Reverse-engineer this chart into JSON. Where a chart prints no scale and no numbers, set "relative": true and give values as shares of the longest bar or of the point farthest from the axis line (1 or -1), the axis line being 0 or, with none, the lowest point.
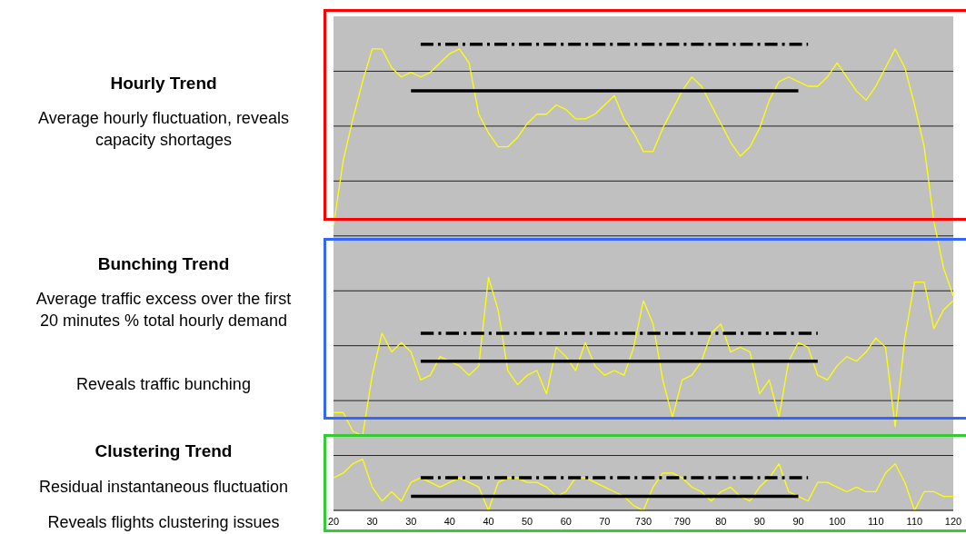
{
  "chart_data": {
    "type": "line",
    "relative": true,
    "grid": true,
    "marker": "none",
    "annotations": [
      "Hourly Trend",
      "Average hourly fluctuation, reveals capacity shortages",
      "Bunching Trend",
      "Average traffic excess over the first 20 minutes % total hourly demand",
      "Reveals traffic bunching",
      "Clustering Trend",
      "Residual instantaneous fluctuation",
      "Reveals flights clustering issues"
    ],
    "categories": [
      "20",
      null,
      null,
      null,
      "30",
      null,
      null,
      null,
      "30",
      null,
      null,
      null,
      "40",
      null,
      null,
      null,
      "40",
      null,
      null,
      null,
      "50",
      null,
      null,
      null,
      "60",
      null,
      null,
      null,
      "70",
      null,
      null,
      null,
      "730",
      null,
      null,
      null,
      "790",
      null,
      null,
      null,
      "80",
      null,
      null,
      null,
      "90",
      null,
      null,
      null,
      "90",
      null,
      null,
      null,
      "100",
      null,
      null,
      null,
      "110",
      null,
      null,
      null,
      "110",
      null,
      null,
      null,
      "120"
    ],
    "series": [
      {
        "color": "#ffff00",
        "values": [
          0.61,
          0.75,
          0.84,
          0.92,
          0.99,
          0.99,
          0.95,
          0.93,
          0.94,
          0.93,
          0.94,
          0.96,
          0.98,
          0.99,
          0.96,
          0.85,
          0.81,
          0.78,
          0.78,
          0.8,
          0.83,
          0.85,
          0.85,
          0.87,
          0.86,
          0.84,
          0.84,
          0.85,
          0.87,
          0.89,
          0.84,
          0.81,
          0.77,
          0.77,
          0.82,
          0.86,
          0.9,
          0.93,
          0.91,
          0.87,
          0.83,
          0.79,
          0.76,
          0.78,
          0.82,
          0.88,
          0.92,
          0.93,
          0.92,
          0.91,
          0.91,
          0.93,
          0.96,
          0.93,
          0.9,
          0.88,
          0.91,
          0.95,
          0.99,
          0.95,
          0.87,
          0.78,
          0.62,
          0.52,
          0.46
        ]
      },
      {
        "color": "#ffff00",
        "values": [
          0.21,
          0.21,
          0.17,
          0.16,
          0.29,
          0.38,
          0.34,
          0.36,
          0.34,
          0.28,
          0.29,
          0.33,
          0.32,
          0.31,
          0.29,
          0.31,
          0.5,
          0.43,
          0.3,
          0.27,
          0.29,
          0.3,
          0.25,
          0.35,
          0.33,
          0.3,
          0.36,
          0.31,
          0.29,
          0.3,
          0.29,
          0.35,
          0.45,
          0.4,
          0.28,
          0.2,
          0.28,
          0.29,
          0.32,
          0.38,
          0.4,
          0.34,
          0.35,
          0.34,
          0.25,
          0.28,
          0.2,
          0.32,
          0.36,
          0.35,
          0.29,
          0.28,
          0.31,
          0.33,
          0.32,
          0.34,
          0.37,
          0.35,
          0.18,
          0.37,
          0.49,
          0.49,
          0.39,
          0.43,
          0.45
        ]
      },
      {
        "color": "#ffff00",
        "values": [
          0.07,
          0.08,
          0.1,
          0.11,
          0.05,
          0.02,
          0.04,
          0.02,
          0.06,
          0.07,
          0.06,
          0.05,
          0.06,
          0.07,
          0.06,
          0.05,
          0,
          0.06,
          0.07,
          0.07,
          0.06,
          0.06,
          0.05,
          0.03,
          0.04,
          0.07,
          0.07,
          0.06,
          0.05,
          0.04,
          0.03,
          0.01,
          0,
          0.05,
          0.08,
          0.08,
          0.07,
          0.05,
          0.04,
          0.02,
          0.04,
          0.05,
          0.03,
          0.02,
          0.05,
          0.07,
          0.1,
          0.04,
          0.03,
          0.02,
          0.06,
          0.06,
          0.05,
          0.04,
          0.05,
          0.04,
          0.04,
          0.08,
          0.1,
          0.06,
          0,
          0.04,
          0.04,
          0.03,
          0.03
        ]
      },
      {
        "color": "#000000",
        "line_style": "dashed",
        "values": [
          null,
          null,
          null,
          null,
          null,
          null,
          null,
          null,
          null,
          1,
          1,
          1,
          1,
          1,
          1,
          1,
          1,
          1,
          1,
          1,
          1,
          1,
          1,
          1,
          1,
          1,
          1,
          1,
          1,
          1,
          1,
          1,
          1,
          1,
          1,
          1,
          1,
          1,
          1,
          1,
          1,
          1,
          1,
          1,
          1,
          1,
          1,
          1,
          1,
          1,
          null,
          null,
          null,
          null,
          null,
          null,
          null,
          null,
          null,
          null,
          null,
          null,
          null,
          null,
          null
        ]
      },
      {
        "color": "#000000",
        "line_style": "solid",
        "values": [
          null,
          null,
          null,
          null,
          null,
          null,
          null,
          null,
          0.9,
          0.9,
          0.9,
          0.9,
          0.9,
          0.9,
          0.9,
          0.9,
          0.9,
          0.9,
          0.9,
          0.9,
          0.9,
          0.9,
          0.9,
          0.9,
          0.9,
          0.9,
          0.9,
          0.9,
          0.9,
          0.9,
          0.9,
          0.9,
          0.9,
          0.9,
          0.9,
          0.9,
          0.9,
          0.9,
          0.9,
          0.9,
          0.9,
          0.9,
          0.9,
          0.9,
          0.9,
          0.9,
          0.9,
          0.9,
          0.9,
          null,
          null,
          null,
          null,
          null,
          null,
          null,
          null,
          null,
          null,
          null,
          null,
          null,
          null,
          null,
          null
        ]
      },
      {
        "color": "#000000",
        "line_style": "dashed",
        "values": [
          null,
          null,
          null,
          null,
          null,
          null,
          null,
          null,
          null,
          0.38,
          0.38,
          0.38,
          0.38,
          0.38,
          0.38,
          0.38,
          0.38,
          0.38,
          0.38,
          0.38,
          0.38,
          0.38,
          0.38,
          0.38,
          0.38,
          0.38,
          0.38,
          0.38,
          0.38,
          0.38,
          0.38,
          0.38,
          0.38,
          0.38,
          0.38,
          0.38,
          0.38,
          0.38,
          0.38,
          0.38,
          0.38,
          0.38,
          0.38,
          0.38,
          0.38,
          0.38,
          0.38,
          0.38,
          0.38,
          0.38,
          0.38,
          null,
          null,
          null,
          null,
          null,
          null,
          null,
          null,
          null,
          null,
          null,
          null,
          null,
          null
        ]
      },
      {
        "color": "#000000",
        "line_style": "solid",
        "values": [
          null,
          null,
          null,
          null,
          null,
          null,
          null,
          null,
          null,
          0.32,
          0.32,
          0.32,
          0.32,
          0.32,
          0.32,
          0.32,
          0.32,
          0.32,
          0.32,
          0.32,
          0.32,
          0.32,
          0.32,
          0.32,
          0.32,
          0.32,
          0.32,
          0.32,
          0.32,
          0.32,
          0.32,
          0.32,
          0.32,
          0.32,
          0.32,
          0.32,
          0.32,
          0.32,
          0.32,
          0.32,
          0.32,
          0.32,
          0.32,
          0.32,
          0.32,
          0.32,
          0.32,
          0.32,
          0.32,
          0.32,
          0.32,
          null,
          null,
          null,
          null,
          null,
          null,
          null,
          null,
          null,
          null,
          null,
          null,
          null,
          null
        ]
      },
      {
        "color": "#000000",
        "line_style": "dashed",
        "values": [
          null,
          null,
          null,
          null,
          null,
          null,
          null,
          null,
          null,
          0.07,
          0.07,
          0.07,
          0.07,
          0.07,
          0.07,
          0.07,
          0.07,
          0.07,
          0.07,
          0.07,
          0.07,
          0.07,
          0.07,
          0.07,
          0.07,
          0.07,
          0.07,
          0.07,
          0.07,
          0.07,
          0.07,
          0.07,
          0.07,
          0.07,
          0.07,
          0.07,
          0.07,
          0.07,
          0.07,
          0.07,
          0.07,
          0.07,
          0.07,
          0.07,
          0.07,
          0.07,
          0.07,
          0.07,
          0.07,
          0.07,
          null,
          null,
          null,
          null,
          null,
          null,
          null,
          null,
          null,
          null,
          null,
          null,
          null,
          null,
          null
        ]
      },
      {
        "color": "#000000",
        "line_style": "solid",
        "values": [
          null,
          null,
          null,
          null,
          null,
          null,
          null,
          null,
          0.03,
          0.03,
          0.03,
          0.03,
          0.03,
          0.03,
          0.03,
          0.03,
          0.03,
          0.03,
          0.03,
          0.03,
          0.03,
          0.03,
          0.03,
          0.03,
          0.03,
          0.03,
          0.03,
          0.03,
          0.03,
          0.03,
          0.03,
          0.03,
          0.03,
          0.03,
          0.03,
          0.03,
          0.03,
          0.03,
          0.03,
          0.03,
          0.03,
          0.03,
          0.03,
          0.03,
          0.03,
          0.03,
          0.03,
          0.03,
          0.03,
          null,
          null,
          null,
          null,
          null,
          null,
          null,
          null,
          null,
          null,
          null,
          null,
          null,
          null,
          null,
          null
        ]
      }
    ]
  }
}
